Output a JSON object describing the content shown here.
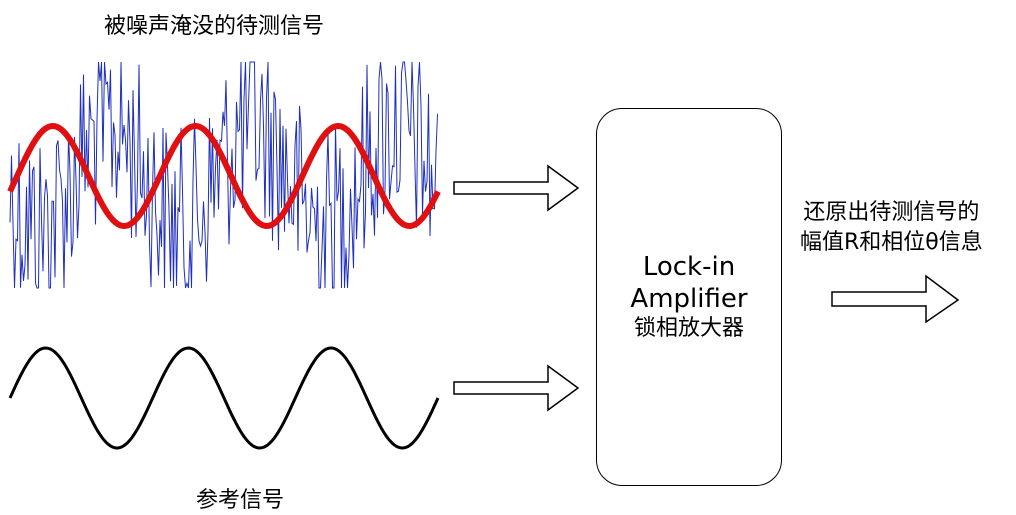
{
  "labels": {
    "noisy_signal": "被噪声淹没的待测信号",
    "reference_signal": "参考信号",
    "output_line1": "还原出待测信号的",
    "output_line2": "幅值R和相位θ信息"
  },
  "block": {
    "name_line1": "Lock-in",
    "name_line2": "Amplifier",
    "name_zh": "锁相放大器"
  },
  "colors": {
    "noise": "#1f2fbf",
    "signal": "#e01010",
    "reference": "#000000",
    "outline": "#000000"
  },
  "signal": {
    "cycles": 3
  },
  "reference": {
    "cycles": 3
  }
}
